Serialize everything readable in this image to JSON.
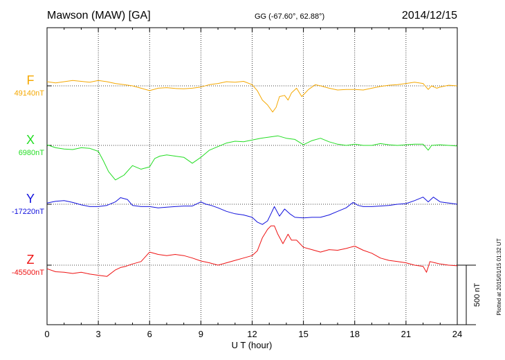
{
  "header": {
    "station": "Mawson (MAW)  [GA]",
    "coords": "GG (-67.60°,  62.88°)",
    "date": "2014/12/15"
  },
  "footer": {
    "xlabel": "U T (hour)",
    "plotted": "Plotted at 2015/01/15 01:32 UT"
  },
  "scale_bar": {
    "label": "500 nT",
    "value_nT": 500
  },
  "colors": {
    "F": "#f5a800",
    "X": "#22dd22",
    "Y": "#1010dd",
    "Z": "#ee1111",
    "axis": "#000000"
  },
  "chart_data": {
    "type": "line",
    "xlim": [
      0,
      24
    ],
    "xticks": [
      0,
      3,
      6,
      9,
      12,
      15,
      18,
      21,
      24
    ],
    "grid": true,
    "series": [
      {
        "name": "F",
        "baseline_label": "49140nT",
        "baseline": 49140,
        "x": [
          0,
          0.5,
          1,
          1.5,
          2,
          2.5,
          3,
          3.5,
          4,
          4.5,
          5,
          5.5,
          6,
          6.5,
          7,
          7.5,
          8,
          8.5,
          9,
          9.5,
          10,
          10.5,
          11,
          11.5,
          12,
          12.3,
          12.6,
          12.9,
          13.2,
          13.4,
          13.6,
          13.9,
          14.1,
          14.3,
          14.6,
          14.9,
          15.3,
          15.7,
          16,
          16.5,
          17,
          17.5,
          18,
          18.5,
          19,
          19.5,
          20,
          20.5,
          21,
          21.5,
          22,
          22.3,
          22.5,
          22.8,
          23,
          23.5,
          24
        ],
        "y": [
          49175,
          49165,
          49175,
          49185,
          49178,
          49170,
          49185,
          49175,
          49160,
          49150,
          49140,
          49120,
          49100,
          49120,
          49125,
          49118,
          49115,
          49120,
          49130,
          49150,
          49160,
          49175,
          49170,
          49178,
          49150,
          49100,
          49020,
          48980,
          48920,
          48960,
          49050,
          49060,
          49020,
          49080,
          49120,
          49050,
          49110,
          49150,
          49140,
          49120,
          49105,
          49110,
          49110,
          49105,
          49120,
          49135,
          49145,
          49150,
          49160,
          49170,
          49160,
          49110,
          49140,
          49120,
          49130,
          49145,
          49140
        ]
      },
      {
        "name": "X",
        "baseline_label": "6980nT",
        "baseline": 6980,
        "x": [
          0,
          0.5,
          1,
          1.5,
          2,
          2.5,
          3,
          3.3,
          3.6,
          4,
          4.5,
          5,
          5.5,
          6,
          6.3,
          6.6,
          7,
          7.5,
          8,
          8.5,
          9,
          9.5,
          10,
          10.5,
          11,
          11.5,
          12,
          12.5,
          13,
          13.5,
          14,
          14.5,
          15,
          15.5,
          16,
          16.5,
          17,
          17.5,
          18,
          18.5,
          19,
          19.5,
          20,
          20.5,
          21,
          21.5,
          22,
          22.3,
          22.5,
          23,
          23.5,
          24
        ],
        "y": [
          6985,
          6960,
          6950,
          6945,
          6960,
          6955,
          6930,
          6850,
          6760,
          6690,
          6730,
          6810,
          6780,
          6800,
          6870,
          6890,
          6900,
          6890,
          6880,
          6830,
          6880,
          6940,
          6970,
          7000,
          7015,
          7010,
          7025,
          7040,
          7050,
          7060,
          7040,
          7030,
          6985,
          7020,
          7040,
          7010,
          6990,
          6980,
          6990,
          6980,
          6980,
          6995,
          6985,
          6980,
          6985,
          6990,
          6990,
          6940,
          6980,
          6985,
          6980,
          6975
        ]
      },
      {
        "name": "Y",
        "baseline_label": "-17220nT",
        "baseline": -17220,
        "x": [
          0,
          0.5,
          1,
          1.5,
          2,
          2.5,
          3,
          3.5,
          4,
          4.3,
          4.7,
          5,
          5.5,
          6,
          6.5,
          7,
          7.5,
          8,
          8.5,
          9,
          9.3,
          9.6,
          10,
          10.5,
          11,
          11.5,
          12,
          12.3,
          12.6,
          12.9,
          13.1,
          13.3,
          13.6,
          13.9,
          14.2,
          14.5,
          15,
          15.5,
          16,
          16.5,
          17,
          17.5,
          17.9,
          18.2,
          18.5,
          19,
          19.5,
          20,
          20.5,
          21,
          21.5,
          22,
          22.3,
          22.6,
          23,
          23.5,
          24
        ],
        "y": [
          -17210,
          -17195,
          -17190,
          -17205,
          -17225,
          -17240,
          -17240,
          -17230,
          -17200,
          -17165,
          -17180,
          -17230,
          -17240,
          -17240,
          -17250,
          -17245,
          -17240,
          -17235,
          -17235,
          -17200,
          -17220,
          -17230,
          -17250,
          -17280,
          -17300,
          -17310,
          -17330,
          -17370,
          -17390,
          -17360,
          -17300,
          -17240,
          -17320,
          -17260,
          -17300,
          -17330,
          -17335,
          -17330,
          -17330,
          -17310,
          -17280,
          -17250,
          -17205,
          -17230,
          -17240,
          -17240,
          -17235,
          -17230,
          -17220,
          -17215,
          -17190,
          -17160,
          -17200,
          -17160,
          -17200,
          -17210,
          -17220
        ]
      },
      {
        "name": "Z",
        "baseline_label": "-45500nT",
        "baseline": -45500,
        "x": [
          0,
          0.5,
          1,
          1.5,
          2,
          2.5,
          3,
          3.5,
          4,
          4.3,
          4.6,
          5,
          5.5,
          6,
          6.5,
          7,
          7.5,
          8,
          8.5,
          9,
          9.5,
          10,
          10.5,
          11,
          11.5,
          12,
          12.3,
          12.6,
          12.9,
          13.1,
          13.3,
          13.5,
          13.8,
          14.1,
          14.3,
          14.6,
          15,
          15.5,
          16,
          16.5,
          17,
          17.5,
          18,
          18.5,
          19,
          19.5,
          20,
          20.5,
          21,
          21.5,
          22,
          22.2,
          22.4,
          22.7,
          23,
          23.5,
          24
        ],
        "y": [
          -45530,
          -45555,
          -45560,
          -45570,
          -45560,
          -45575,
          -45585,
          -45595,
          -45540,
          -45520,
          -45510,
          -45490,
          -45470,
          -45390,
          -45410,
          -45420,
          -45410,
          -45420,
          -45440,
          -45465,
          -45480,
          -45500,
          -45480,
          -45460,
          -45440,
          -45420,
          -45380,
          -45270,
          -45200,
          -45170,
          -45170,
          -45240,
          -45320,
          -45240,
          -45290,
          -45290,
          -45350,
          -45370,
          -45390,
          -45370,
          -45375,
          -45360,
          -45340,
          -45375,
          -45400,
          -45440,
          -45460,
          -45470,
          -45480,
          -45500,
          -45510,
          -45560,
          -45470,
          -45480,
          -45490,
          -45500,
          -45505
        ]
      }
    ]
  }
}
